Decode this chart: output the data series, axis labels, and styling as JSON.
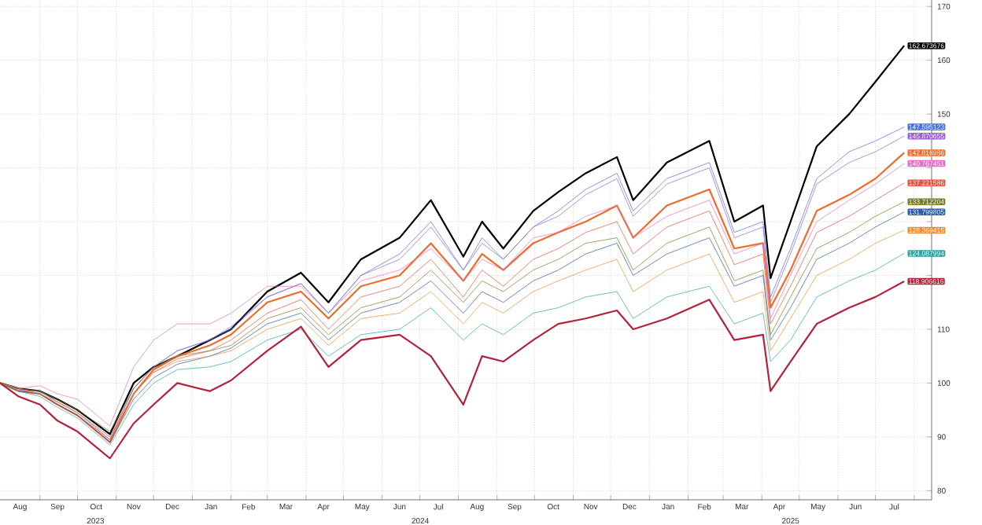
{
  "chart_data": {
    "type": "line",
    "grid": true,
    "xlim": [
      "2023-07-31",
      "2025-08-15"
    ],
    "ylim": [
      78.3,
      171.2
    ],
    "yticks": [
      80,
      90,
      100,
      110,
      {
        "value": 120,
        "label": null
      },
      {
        "value": 130,
        "label": null
      },
      {
        "value": 140,
        "label": null
      },
      150,
      160,
      170
    ],
    "xticks": [
      {
        "value": "2023-08-16",
        "label": "Aug"
      },
      {
        "value": "2023-09-15",
        "label": "Sep"
      },
      {
        "value": "2023-10-16",
        "label": "Oct"
      },
      {
        "value": "2023-11-15",
        "label": "Nov"
      },
      {
        "value": "2023-12-16",
        "label": "Dec"
      },
      {
        "value": "2024-01-16",
        "label": "Jan"
      },
      {
        "value": "2024-02-15",
        "label": "Feb"
      },
      {
        "value": "2024-03-16",
        "label": "Mar"
      },
      {
        "value": "2024-04-15",
        "label": "Apr"
      },
      {
        "value": "2024-05-16",
        "label": "May"
      },
      {
        "value": "2024-06-15",
        "label": "Jun"
      },
      {
        "value": "2024-07-16",
        "label": "Jul"
      },
      {
        "value": "2024-08-16",
        "label": "Aug"
      },
      {
        "value": "2024-09-15",
        "label": "Sep"
      },
      {
        "value": "2024-10-16",
        "label": "Oct"
      },
      {
        "value": "2024-11-15",
        "label": "Nov"
      },
      {
        "value": "2024-12-16",
        "label": "Dec"
      },
      {
        "value": "2025-01-16",
        "label": "Jan"
      },
      {
        "value": "2025-02-14",
        "label": "Feb"
      },
      {
        "value": "2025-03-16",
        "label": "Mar"
      },
      {
        "value": "2025-04-15",
        "label": "Apr"
      },
      {
        "value": "2025-05-16",
        "label": "May"
      },
      {
        "value": "2025-06-15",
        "label": "Jun"
      },
      {
        "value": "2025-07-16",
        "label": "Jul"
      },
      {
        "value": "2023-09-01",
        "label": null
      },
      {
        "value": "2023-10-01",
        "label": null
      },
      {
        "value": "2023-11-01",
        "label": null
      },
      {
        "value": "2023-12-01",
        "label": null
      },
      {
        "value": "2024-01-01",
        "label": null
      },
      {
        "value": "2024-02-01",
        "label": null
      },
      {
        "value": "2024-03-01",
        "label": null
      },
      {
        "value": "2024-04-01",
        "label": null
      },
      {
        "value": "2024-05-01",
        "label": null
      },
      {
        "value": "2024-06-01",
        "label": null
      },
      {
        "value": "2024-07-01",
        "label": null
      },
      {
        "value": "2024-08-01",
        "label": null
      },
      {
        "value": "2024-09-01",
        "label": null
      },
      {
        "value": "2024-10-01",
        "label": null
      },
      {
        "value": "2024-11-01",
        "label": null
      },
      {
        "value": "2024-12-01",
        "label": null
      },
      {
        "value": "2025-01-01",
        "label": null
      },
      {
        "value": "2025-02-01",
        "label": null
      },
      {
        "value": "2025-03-01",
        "label": null
      },
      {
        "value": "2025-04-01",
        "label": null
      },
      {
        "value": "2025-05-01",
        "label": null
      },
      {
        "value": "2025-06-01",
        "label": null
      },
      {
        "value": "2025-07-01",
        "label": null
      },
      {
        "value": "2025-08-01",
        "label": null
      }
    ],
    "x": [
      "2023-07-31",
      "2023-08-15",
      "2023-09-01",
      "2023-09-15",
      "2023-10-01",
      "2023-10-27",
      "2023-11-15",
      "2023-12-01",
      "2023-12-20",
      "2024-01-15",
      "2024-02-01",
      "2024-03-01",
      "2024-03-28",
      "2024-04-19",
      "2024-05-15",
      "2024-06-15",
      "2024-07-10",
      "2024-08-05",
      "2024-08-20",
      "2024-09-06",
      "2024-09-30",
      "2024-10-20",
      "2024-11-11",
      "2024-12-06",
      "2024-12-19",
      "2025-01-15",
      "2025-02-18",
      "2025-03-10",
      "2025-04-02",
      "2025-04-08",
      "2025-04-24",
      "2025-05-15",
      "2025-06-10",
      "2025-07-01",
      "2025-07-24"
    ],
    "series": [
      {
        "color": "#000000",
        "values": [
          100,
          99,
          98.5,
          97,
          95,
          90.5,
          100,
          103,
          105,
          108,
          110,
          117,
          120.5,
          115,
          123,
          127,
          134,
          123.5,
          130,
          125,
          132,
          135.5,
          139,
          142,
          134,
          141,
          145,
          130,
          133,
          119.5,
          130,
          144,
          150,
          156,
          162.7
        ]
      },
      {
        "color": "#4a6fe0",
        "values": [
          100,
          98.5,
          98.5,
          96.5,
          94.5,
          89.5,
          99,
          103,
          106,
          108,
          110,
          116,
          118.5,
          113,
          120,
          124,
          130,
          121,
          127,
          123,
          129,
          132,
          136,
          139,
          132,
          138,
          141,
          128,
          130,
          116,
          125,
          138,
          143,
          145,
          147.6
        ]
      },
      {
        "color": "#9a5fd6",
        "values": [
          100,
          98.7,
          98.5,
          96.5,
          94.5,
          90,
          99,
          103,
          106,
          108,
          110.5,
          116,
          118.5,
          113,
          120,
          123,
          129,
          121,
          126,
          123,
          129,
          131,
          135,
          138,
          131,
          137,
          140,
          127,
          129,
          115,
          124,
          137,
          141,
          143,
          145.9
        ]
      },
      {
        "color": "#f06a28",
        "values": [
          100,
          98.5,
          98,
          96,
          94,
          89,
          98,
          102.5,
          105,
          107,
          109,
          115,
          117,
          112,
          118,
          120,
          126,
          119,
          124,
          121,
          126,
          128,
          130,
          133,
          127,
          133,
          136,
          125,
          126,
          114,
          121,
          132,
          135,
          138,
          142.8
        ]
      },
      {
        "color": "#e36fc4",
        "values": [
          100,
          99,
          99.5,
          98,
          97,
          92,
          103,
          108,
          111,
          111,
          113,
          118,
          118,
          113,
          119,
          121,
          125,
          119,
          123,
          121,
          127,
          128,
          131,
          133,
          127,
          131,
          134,
          124,
          126,
          112,
          120,
          130,
          134,
          137,
          140.8
        ]
      },
      {
        "color": "#e8503c",
        "values": [
          100,
          98.5,
          98,
          96,
          94,
          89.5,
          98,
          102,
          104.5,
          106,
          108,
          113,
          115.5,
          110,
          116,
          118,
          123,
          116,
          121,
          118,
          123,
          125,
          128,
          130,
          124,
          129,
          132,
          122,
          124,
          111,
          118,
          128,
          131,
          134,
          137.2
        ]
      },
      {
        "color": "#7a7a22",
        "values": [
          100,
          99,
          98.5,
          97,
          95,
          91,
          99,
          103,
          105,
          106,
          107,
          112,
          114,
          109,
          114,
          116,
          121,
          115,
          119,
          117,
          121,
          123,
          126,
          127,
          121,
          126,
          129,
          119,
          121,
          109,
          116,
          125,
          128,
          131,
          133.7
        ]
      },
      {
        "color": "#2a5aa8",
        "values": [
          100,
          98.5,
          98,
          96,
          94,
          89,
          97,
          101,
          103.5,
          105,
          106.5,
          111,
          113,
          108,
          113,
          115,
          119,
          113,
          117,
          115,
          119,
          121,
          124,
          126,
          120,
          124,
          127,
          118,
          120,
          108,
          114,
          123,
          126,
          129,
          131.8
        ]
      },
      {
        "color": "#f08a30",
        "values": [
          100,
          99,
          98,
          96.5,
          94.5,
          90,
          98,
          102,
          104,
          105,
          106,
          110,
          112,
          107,
          112,
          113,
          117,
          111,
          115,
          113,
          117,
          119,
          121,
          123,
          117,
          121,
          124,
          115,
          117,
          106,
          112,
          120,
          123,
          126,
          128.4
        ]
      },
      {
        "color": "#2ba3a3",
        "values": [
          100,
          98.5,
          97.5,
          95.5,
          93.5,
          88.5,
          96,
          100,
          102.5,
          103,
          104,
          108,
          110,
          105,
          109,
          110,
          114,
          108,
          111,
          109,
          113,
          114,
          116,
          117,
          112,
          116,
          118,
          111,
          113,
          104,
          108,
          116,
          119,
          121,
          124.1
        ]
      },
      {
        "color": "#b5213a",
        "values": [
          100,
          97.5,
          96,
          93,
          91,
          86,
          92.5,
          96,
          100,
          98.5,
          100.5,
          106,
          110.5,
          103,
          108,
          109,
          105,
          96,
          105,
          104,
          108,
          111,
          112,
          113.5,
          110,
          112,
          115.5,
          108,
          109,
          98.5,
          104,
          111,
          114,
          116,
          118.9
        ]
      }
    ],
    "annotations": [
      {
        "text": "162.673676",
        "x": "2025-07-24",
        "y": 162.7
      },
      {
        "text": "147.595123",
        "x": "2025-07-24",
        "y": 147.6
      },
      {
        "text": "145.870655",
        "x": "2025-07-24",
        "y": 145.9
      },
      {
        "text": "142.816986",
        "x": "2025-07-24",
        "y": 142.8
      },
      {
        "text": "140.767451",
        "x": "2025-07-24",
        "y": 140.8
      },
      {
        "text": "137.221586",
        "x": "2025-07-24",
        "y": 137.2
      },
      {
        "text": "133.712204",
        "x": "2025-07-24",
        "y": 133.7
      },
      {
        "text": "131.799805",
        "x": "2025-07-24",
        "y": 131.8
      },
      {
        "text": "128.369415",
        "x": "2025-07-24",
        "y": 128.4
      },
      {
        "text": "124.087994",
        "x": "2025-07-24",
        "y": 124.1
      },
      {
        "text": "118.906616",
        "x": "2025-07-24",
        "y": 118.9
      },
      "2023",
      "2024",
      "2025"
    ]
  }
}
